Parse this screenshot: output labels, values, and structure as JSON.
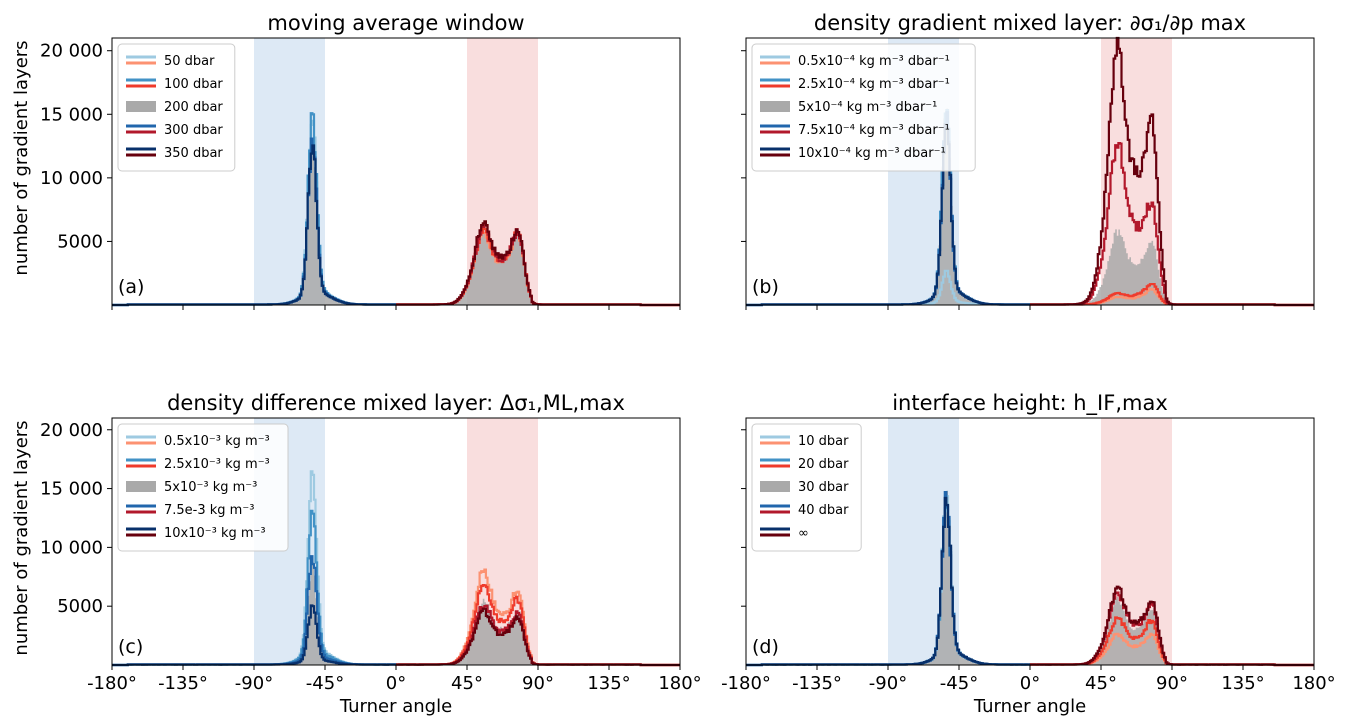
{
  "figure": {
    "xlabel": "Turner angle",
    "ylabel": "number of gradient layers",
    "x_ticks": [
      -180,
      -135,
      -90,
      -45,
      0,
      45,
      90,
      135,
      180
    ],
    "x_tick_labels": [
      "-180°",
      "-135°",
      "-90°",
      "-45°",
      "0°",
      "45°",
      "90°",
      "135°",
      "180°"
    ],
    "y_ticks": [
      5000,
      10000,
      15000,
      20000
    ],
    "y_tick_labels": [
      "5000",
      "10 000",
      "15 000",
      "20 000"
    ],
    "blue_band": [
      -90,
      -45
    ],
    "red_band": [
      45,
      90
    ],
    "colors": {
      "blue_band": "#dde9f5",
      "red_band": "#f9dede",
      "gray_fill": "#a9a9a9"
    }
  },
  "chart_data": [
    {
      "type": "step-histogram",
      "panel": "a",
      "tag": "(a)",
      "title": "moving average window",
      "xlim": [
        -180,
        180
      ],
      "ylim": [
        0,
        21000
      ],
      "legend": {
        "position": "top-left",
        "entries": [
          {
            "label": "50 dbar",
            "blue": "#9ecae1",
            "red": "#fc9272"
          },
          {
            "label": "100 dbar",
            "blue": "#4292c6",
            "red": "#ef3b2c"
          },
          {
            "label": "200 dbar",
            "gray": "#a9a9a9"
          },
          {
            "label": "300 dbar",
            "blue": "#2166ac",
            "red": "#b2182b"
          },
          {
            "label": "350 dbar",
            "blue": "#08306b",
            "red": "#67000d"
          }
        ]
      },
      "series": [
        {
          "name": "50 dbar",
          "cold_peak": 13600,
          "warm_peak1": 5700,
          "warm_peak2": 3900,
          "cold_color": "#9ecae1",
          "warm_color": "#fc9272"
        },
        {
          "name": "100 dbar",
          "cold_peak": 13500,
          "warm_peak1": 5900,
          "warm_peak2": 4000,
          "cold_color": "#4292c6",
          "warm_color": "#ef3b2c"
        },
        {
          "name": "200 dbar",
          "cold_peak": 12000,
          "warm_peak1": 6000,
          "warm_peak2": 3900,
          "fill": "#a9a9a9"
        },
        {
          "name": "300 dbar",
          "cold_peak": 11800,
          "warm_peak1": 6200,
          "warm_peak2": 4000,
          "cold_color": "#2166ac",
          "warm_color": "#b2182b"
        },
        {
          "name": "350 dbar",
          "cold_peak": 11600,
          "warm_peak1": 6500,
          "warm_peak2": 4100,
          "cold_color": "#08306b",
          "warm_color": "#67000d"
        }
      ]
    },
    {
      "type": "step-histogram",
      "panel": "b",
      "tag": "(b)",
      "title": "density gradient mixed layer: ∂σ₁/∂p max",
      "xlim": [
        -180,
        180
      ],
      "ylim": [
        0,
        21000
      ],
      "legend": {
        "position": "top-left",
        "entries": [
          {
            "label": "0.5x10⁻⁴ kg m⁻³ dbar⁻¹",
            "blue": "#9ecae1",
            "red": "#fc9272"
          },
          {
            "label": "2.5x10⁻⁴ kg m⁻³ dbar⁻¹",
            "blue": "#4292c6",
            "red": "#ef3b2c"
          },
          {
            "label": "5x10⁻⁴ kg m⁻³ dbar⁻¹",
            "gray": "#a9a9a9"
          },
          {
            "label": "7.5x10⁻⁴ kg m⁻³ dbar⁻¹",
            "blue": "#2166ac",
            "red": "#b2182b"
          },
          {
            "label": "10x10⁻⁴ kg m⁻³ dbar⁻¹",
            "blue": "#08306b",
            "red": "#67000d"
          }
        ]
      },
      "series": [
        {
          "name": "0.5x10⁻⁴ kg m⁻³ dbar⁻¹",
          "cold_peak": 2500,
          "warm_peak1": 600,
          "warm_peak2": 900,
          "cold_color": "#9ecae1",
          "warm_color": "#fc9272"
        },
        {
          "name": "2.5x10⁻⁴ kg m⁻³ dbar⁻¹",
          "cold_peak": 14000,
          "warm_peak1": 900,
          "warm_peak2": 1200,
          "cold_color": "#4292c6",
          "warm_color": "#ef3b2c"
        },
        {
          "name": "5x10⁻⁴ kg m⁻³ dbar⁻¹",
          "cold_peak": 15000,
          "warm_peak1": 5800,
          "warm_peak2": 3500,
          "fill": "#a9a9a9"
        },
        {
          "name": "7.5x10⁻⁴ kg m⁻³ dbar⁻¹",
          "cold_peak": 13500,
          "warm_peak1": 12800,
          "warm_peak2": 5300,
          "cold_color": "#2166ac",
          "warm_color": "#b2182b"
        },
        {
          "name": "10x10⁻⁴ kg m⁻³ dbar⁻¹",
          "cold_peak": 13300,
          "warm_peak1": 20500,
          "warm_peak2": 10000,
          "cold_color": "#08306b",
          "warm_color": "#67000d"
        }
      ]
    },
    {
      "type": "step-histogram",
      "panel": "c",
      "tag": "(c)",
      "title": "density difference mixed layer: Δσ₁,ML,max",
      "xlim": [
        -180,
        180
      ],
      "ylim": [
        0,
        21000
      ],
      "legend": {
        "position": "top-left",
        "entries": [
          {
            "label": "0.5x10⁻³ kg m⁻³",
            "blue": "#9ecae1",
            "red": "#fc9272"
          },
          {
            "label": "2.5x10⁻³ kg m⁻³",
            "blue": "#4292c6",
            "red": "#ef3b2c"
          },
          {
            "label": "5x10⁻³ kg m⁻³",
            "gray": "#a9a9a9"
          },
          {
            "label": "7.5e-3 kg m⁻³",
            "blue": "#2166ac",
            "red": "#b2182b"
          },
          {
            "label": "10x10⁻³ kg m⁻³",
            "blue": "#08306b",
            "red": "#67000d"
          }
        ]
      },
      "series": [
        {
          "name": "0.5x10⁻³ kg m⁻³",
          "cold_peak": 15000,
          "warm_peak1": 8000,
          "warm_peak2": 4300,
          "cold_color": "#9ecae1",
          "warm_color": "#fc9272"
        },
        {
          "name": "2.5x10⁻³ kg m⁻³",
          "cold_peak": 12500,
          "warm_peak1": 7000,
          "warm_peak2": 3800,
          "cold_color": "#4292c6",
          "warm_color": "#ef3b2c"
        },
        {
          "name": "5x10⁻³ kg m⁻³",
          "cold_peak": 8000,
          "warm_peak1": 5500,
          "warm_peak2": 3200,
          "fill": "#a9a9a9"
        },
        {
          "name": "7.5e-3 kg m⁻³",
          "cold_peak": 8500,
          "warm_peak1": 5200,
          "warm_peak2": 3000,
          "cold_color": "#2166ac",
          "warm_color": "#b2182b"
        },
        {
          "name": "10x10⁻³ kg m⁻³",
          "cold_peak": 4500,
          "warm_peak1": 4600,
          "warm_peak2": 2800,
          "cold_color": "#08306b",
          "warm_color": "#67000d"
        }
      ]
    },
    {
      "type": "step-histogram",
      "panel": "d",
      "tag": "(d)",
      "title": "interface height: h_IF,max",
      "xlim": [
        -180,
        180
      ],
      "ylim": [
        0,
        21000
      ],
      "legend": {
        "position": "top-left",
        "entries": [
          {
            "label": "10 dbar",
            "blue": "#9ecae1",
            "red": "#fc9272"
          },
          {
            "label": "20 dbar",
            "blue": "#4292c6",
            "red": "#ef3b2c"
          },
          {
            "label": "30 dbar",
            "gray": "#a9a9a9"
          },
          {
            "label": "40 dbar",
            "blue": "#2166ac",
            "red": "#b2182b"
          },
          {
            "label": "∞",
            "blue": "#08306b",
            "red": "#67000d"
          }
        ]
      },
      "series": [
        {
          "name": "10 dbar",
          "cold_peak": 13000,
          "warm_peak1": 2600,
          "warm_peak2": 1800,
          "cold_color": "#9ecae1",
          "warm_color": "#fc9272"
        },
        {
          "name": "20 dbar",
          "cold_peak": 13100,
          "warm_peak1": 4000,
          "warm_peak2": 2600,
          "cold_color": "#4292c6",
          "warm_color": "#ef3b2c"
        },
        {
          "name": "30 dbar",
          "cold_peak": 13200,
          "warm_peak1": 5500,
          "warm_peak2": 3300,
          "fill": "#a9a9a9"
        },
        {
          "name": "40 dbar",
          "cold_peak": 13200,
          "warm_peak1": 6100,
          "warm_peak2": 3600,
          "cold_color": "#2166ac",
          "warm_color": "#b2182b"
        },
        {
          "name": "∞",
          "cold_peak": 13300,
          "warm_peak1": 6500,
          "warm_peak2": 3700,
          "cold_color": "#08306b",
          "warm_color": "#67000d"
        }
      ]
    }
  ]
}
